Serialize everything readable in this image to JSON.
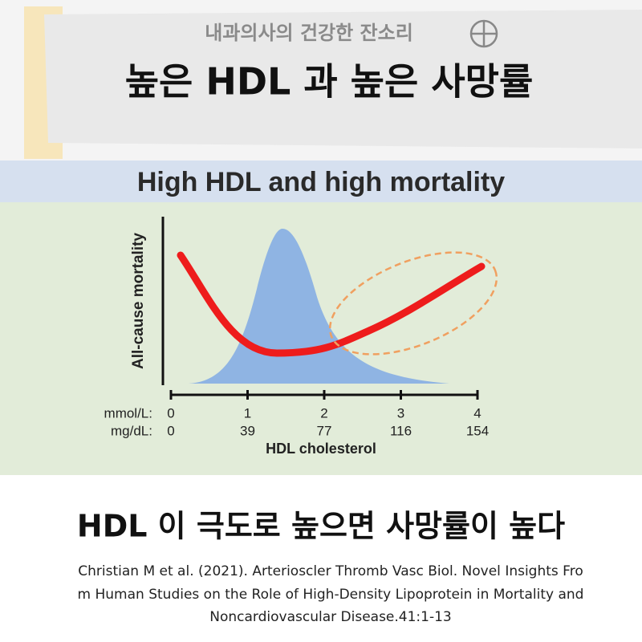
{
  "header": {
    "subtitle": "내과의사의 건강한 잔소리",
    "title": "높은 HDL 과 높은 사망률"
  },
  "figure": {
    "title": "High HDL and high mortality",
    "y_axis_label": "All-cause mortality",
    "x_axis_label": "HDL cholesterol",
    "scales": [
      {
        "unit": "mmol/L:",
        "ticks": [
          "0",
          "1",
          "2",
          "3",
          "4"
        ]
      },
      {
        "unit": "mg/dL:",
        "ticks": [
          "0",
          "39",
          "77",
          "116",
          "154"
        ]
      }
    ]
  },
  "caption": {
    "heading": "HDL 이 극도로 높으면 사망률이 높다",
    "citation": [
      "Christian M et al. (2021). Arterioscler Thromb Vasc Biol. Novel Insights Fro",
      "m Human Studies on the Role of High-Density Lipoprotein in Mortality and",
      "Noncardiovascular Disease.41:1-13"
    ]
  }
}
